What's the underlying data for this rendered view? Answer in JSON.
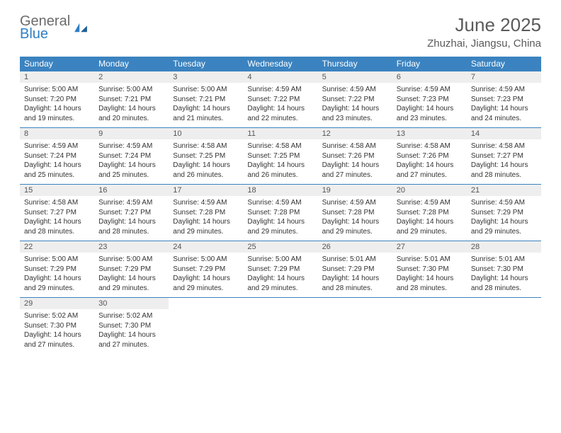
{
  "logo": {
    "general": "General",
    "blue": "Blue"
  },
  "title": "June 2025",
  "location": "Zhuzhai, Jiangsu, China",
  "colors": {
    "header_bg": "#3b83c0",
    "header_fg": "#ffffff",
    "daynum_bg": "#eeeeee",
    "border": "#3b83c0",
    "logo_gray": "#6b6b6b",
    "logo_blue": "#2f7ec2"
  },
  "weekdays": [
    "Sunday",
    "Monday",
    "Tuesday",
    "Wednesday",
    "Thursday",
    "Friday",
    "Saturday"
  ],
  "days": [
    {
      "n": 1,
      "sr": "5:00 AM",
      "ss": "7:20 PM",
      "dl": "14 hours and 19 minutes."
    },
    {
      "n": 2,
      "sr": "5:00 AM",
      "ss": "7:21 PM",
      "dl": "14 hours and 20 minutes."
    },
    {
      "n": 3,
      "sr": "5:00 AM",
      "ss": "7:21 PM",
      "dl": "14 hours and 21 minutes."
    },
    {
      "n": 4,
      "sr": "4:59 AM",
      "ss": "7:22 PM",
      "dl": "14 hours and 22 minutes."
    },
    {
      "n": 5,
      "sr": "4:59 AM",
      "ss": "7:22 PM",
      "dl": "14 hours and 23 minutes."
    },
    {
      "n": 6,
      "sr": "4:59 AM",
      "ss": "7:23 PM",
      "dl": "14 hours and 23 minutes."
    },
    {
      "n": 7,
      "sr": "4:59 AM",
      "ss": "7:23 PM",
      "dl": "14 hours and 24 minutes."
    },
    {
      "n": 8,
      "sr": "4:59 AM",
      "ss": "7:24 PM",
      "dl": "14 hours and 25 minutes."
    },
    {
      "n": 9,
      "sr": "4:59 AM",
      "ss": "7:24 PM",
      "dl": "14 hours and 25 minutes."
    },
    {
      "n": 10,
      "sr": "4:58 AM",
      "ss": "7:25 PM",
      "dl": "14 hours and 26 minutes."
    },
    {
      "n": 11,
      "sr": "4:58 AM",
      "ss": "7:25 PM",
      "dl": "14 hours and 26 minutes."
    },
    {
      "n": 12,
      "sr": "4:58 AM",
      "ss": "7:26 PM",
      "dl": "14 hours and 27 minutes."
    },
    {
      "n": 13,
      "sr": "4:58 AM",
      "ss": "7:26 PM",
      "dl": "14 hours and 27 minutes."
    },
    {
      "n": 14,
      "sr": "4:58 AM",
      "ss": "7:27 PM",
      "dl": "14 hours and 28 minutes."
    },
    {
      "n": 15,
      "sr": "4:58 AM",
      "ss": "7:27 PM",
      "dl": "14 hours and 28 minutes."
    },
    {
      "n": 16,
      "sr": "4:59 AM",
      "ss": "7:27 PM",
      "dl": "14 hours and 28 minutes."
    },
    {
      "n": 17,
      "sr": "4:59 AM",
      "ss": "7:28 PM",
      "dl": "14 hours and 29 minutes."
    },
    {
      "n": 18,
      "sr": "4:59 AM",
      "ss": "7:28 PM",
      "dl": "14 hours and 29 minutes."
    },
    {
      "n": 19,
      "sr": "4:59 AM",
      "ss": "7:28 PM",
      "dl": "14 hours and 29 minutes."
    },
    {
      "n": 20,
      "sr": "4:59 AM",
      "ss": "7:28 PM",
      "dl": "14 hours and 29 minutes."
    },
    {
      "n": 21,
      "sr": "4:59 AM",
      "ss": "7:29 PM",
      "dl": "14 hours and 29 minutes."
    },
    {
      "n": 22,
      "sr": "5:00 AM",
      "ss": "7:29 PM",
      "dl": "14 hours and 29 minutes."
    },
    {
      "n": 23,
      "sr": "5:00 AM",
      "ss": "7:29 PM",
      "dl": "14 hours and 29 minutes."
    },
    {
      "n": 24,
      "sr": "5:00 AM",
      "ss": "7:29 PM",
      "dl": "14 hours and 29 minutes."
    },
    {
      "n": 25,
      "sr": "5:00 AM",
      "ss": "7:29 PM",
      "dl": "14 hours and 29 minutes."
    },
    {
      "n": 26,
      "sr": "5:01 AM",
      "ss": "7:29 PM",
      "dl": "14 hours and 28 minutes."
    },
    {
      "n": 27,
      "sr": "5:01 AM",
      "ss": "7:30 PM",
      "dl": "14 hours and 28 minutes."
    },
    {
      "n": 28,
      "sr": "5:01 AM",
      "ss": "7:30 PM",
      "dl": "14 hours and 28 minutes."
    },
    {
      "n": 29,
      "sr": "5:02 AM",
      "ss": "7:30 PM",
      "dl": "14 hours and 27 minutes."
    },
    {
      "n": 30,
      "sr": "5:02 AM",
      "ss": "7:30 PM",
      "dl": "14 hours and 27 minutes."
    }
  ],
  "labels": {
    "sunrise": "Sunrise:",
    "sunset": "Sunset:",
    "daylight": "Daylight:"
  },
  "start_weekday": 0,
  "trailing_empty": 5
}
